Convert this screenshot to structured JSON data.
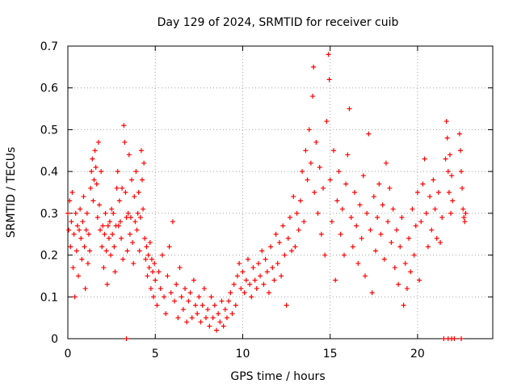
{
  "chart_data": {
    "type": "scatter",
    "title": "Day 129 of 2024, SRMTID for receiver cuib",
    "xlabel": "GPS time / hours",
    "ylabel": "SRMTID / TECUs",
    "xlim": [
      0,
      24.3
    ],
    "ylim": [
      0,
      0.7
    ],
    "x_ticks": [
      0,
      5,
      10,
      15,
      20
    ],
    "x_tick_labels": [
      "0",
      "5",
      "10",
      "15",
      "20"
    ],
    "y_ticks": [
      0,
      0.1,
      0.2,
      0.3,
      0.4,
      0.5,
      0.6,
      0.7
    ],
    "y_tick_labels": [
      "0",
      "0.1",
      "0.2",
      "0.3",
      "0.4",
      "0.5",
      "0.6",
      "0.7"
    ],
    "grid": true,
    "marker": "+",
    "series_color": "#ff0000",
    "series": [
      {
        "name": "SRMTID",
        "points": [
          [
            0.0,
            0.3
          ],
          [
            0.05,
            0.26
          ],
          [
            0.1,
            0.33
          ],
          [
            0.15,
            0.22
          ],
          [
            0.2,
            0.28
          ],
          [
            0.25,
            0.35
          ],
          [
            0.3,
            0.17
          ],
          [
            0.35,
            0.25
          ],
          [
            0.4,
            0.1
          ],
          [
            0.45,
            0.3
          ],
          [
            0.5,
            0.21
          ],
          [
            0.55,
            0.27
          ],
          [
            0.6,
            0.15
          ],
          [
            0.65,
            0.26
          ],
          [
            0.7,
            0.31
          ],
          [
            0.75,
            0.24
          ],
          [
            0.8,
            0.19
          ],
          [
            0.85,
            0.28
          ],
          [
            0.9,
            0.34
          ],
          [
            0.95,
            0.22
          ],
          [
            1.0,
            0.12
          ],
          [
            1.05,
            0.26
          ],
          [
            1.1,
            0.3
          ],
          [
            1.15,
            0.18
          ],
          [
            1.2,
            0.25
          ],
          [
            1.25,
            0.21
          ],
          [
            1.3,
            0.36
          ],
          [
            1.35,
            0.4
          ],
          [
            1.4,
            0.43
          ],
          [
            1.45,
            0.33
          ],
          [
            1.5,
            0.38
          ],
          [
            1.55,
            0.45
          ],
          [
            1.6,
            0.41
          ],
          [
            1.65,
            0.37
          ],
          [
            1.7,
            0.29
          ],
          [
            1.75,
            0.47
          ],
          [
            1.8,
            0.32
          ],
          [
            1.85,
            0.26
          ],
          [
            1.9,
            0.4
          ],
          [
            1.95,
            0.22
          ],
          [
            2.0,
            0.27
          ],
          [
            2.05,
            0.17
          ],
          [
            2.1,
            0.25
          ],
          [
            2.15,
            0.3
          ],
          [
            2.2,
            0.21
          ],
          [
            2.25,
            0.13
          ],
          [
            2.3,
            0.27
          ],
          [
            2.35,
            0.24
          ],
          [
            2.4,
            0.28
          ],
          [
            2.45,
            0.2
          ],
          [
            2.5,
            0.31
          ],
          [
            2.55,
            0.25
          ],
          [
            2.6,
            0.3
          ],
          [
            2.65,
            0.22
          ],
          [
            2.7,
            0.16
          ],
          [
            2.75,
            0.27
          ],
          [
            2.8,
            0.36
          ],
          [
            2.85,
            0.4
          ],
          [
            2.9,
            0.27
          ],
          [
            2.95,
            0.33
          ],
          [
            3.0,
            0.28
          ],
          [
            3.05,
            0.24
          ],
          [
            3.1,
            0.36
          ],
          [
            3.15,
            0.19
          ],
          [
            3.2,
            0.51
          ],
          [
            3.25,
            0.47
          ],
          [
            3.3,
            0.35
          ],
          [
            3.35,
            0.29
          ],
          [
            3.4,
            0.21
          ],
          [
            3.45,
            0.3
          ],
          [
            3.5,
            0.44
          ],
          [
            3.55,
            0.25
          ],
          [
            3.6,
            0.29
          ],
          [
            3.65,
            0.38
          ],
          [
            3.7,
            0.23
          ],
          [
            3.75,
            0.18
          ],
          [
            3.8,
            0.34
          ],
          [
            3.85,
            0.28
          ],
          [
            3.9,
            0.4
          ],
          [
            3.95,
            0.26
          ],
          [
            4.0,
            0.3
          ],
          [
            4.05,
            0.35
          ],
          [
            4.1,
            0.21
          ],
          [
            4.15,
            0.29
          ],
          [
            4.2,
            0.45
          ],
          [
            4.25,
            0.38
          ],
          [
            4.3,
            0.31
          ],
          [
            4.35,
            0.42
          ],
          [
            4.4,
            0.24
          ],
          [
            4.45,
            0.19
          ],
          [
            4.5,
            0.22
          ],
          [
            4.55,
            0.15
          ],
          [
            4.6,
            0.2
          ],
          [
            4.65,
            0.17
          ],
          [
            4.7,
            0.23
          ],
          [
            4.75,
            0.12
          ],
          [
            4.8,
            0.19
          ],
          [
            4.85,
            0.16
          ],
          [
            4.9,
            0.1
          ],
          [
            4.95,
            0.18
          ],
          [
            5.0,
            0.14
          ],
          [
            5.1,
            0.08
          ],
          [
            5.2,
            0.16
          ],
          [
            5.3,
            0.12
          ],
          [
            5.4,
            0.2
          ],
          [
            5.5,
            0.1
          ],
          [
            5.6,
            0.06
          ],
          [
            5.7,
            0.15
          ],
          [
            5.8,
            0.22
          ],
          [
            5.9,
            0.11
          ],
          [
            6.0,
            0.28
          ],
          [
            6.1,
            0.09
          ],
          [
            6.2,
            0.13
          ],
          [
            6.3,
            0.05
          ],
          [
            6.4,
            0.17
          ],
          [
            6.5,
            0.1
          ],
          [
            6.6,
            0.07
          ],
          [
            6.7,
            0.12
          ],
          [
            6.8,
            0.04
          ],
          [
            6.9,
            0.09
          ],
          [
            7.0,
            0.11
          ],
          [
            7.1,
            0.05
          ],
          [
            7.2,
            0.14
          ],
          [
            7.3,
            0.08
          ],
          [
            7.4,
            0.06
          ],
          [
            7.5,
            0.1
          ],
          [
            7.6,
            0.04
          ],
          [
            7.7,
            0.08
          ],
          [
            7.8,
            0.12
          ],
          [
            7.9,
            0.05
          ],
          [
            8.0,
            0.07
          ],
          [
            8.1,
            0.03
          ],
          [
            8.2,
            0.1
          ],
          [
            8.3,
            0.05
          ],
          [
            8.4,
            0.08
          ],
          [
            8.5,
            0.02
          ],
          [
            8.6,
            0.06
          ],
          [
            8.7,
            0.04
          ],
          [
            8.8,
            0.09
          ],
          [
            8.9,
            0.03
          ],
          [
            9.0,
            0.07
          ],
          [
            9.1,
            0.05
          ],
          [
            9.2,
            0.09
          ],
          [
            9.3,
            0.11
          ],
          [
            9.4,
            0.06
          ],
          [
            9.5,
            0.13
          ],
          [
            9.6,
            0.08
          ],
          [
            9.7,
            0.15
          ],
          [
            9.8,
            0.18
          ],
          [
            9.9,
            0.12
          ],
          [
            10.0,
            0.16
          ],
          [
            10.1,
            0.11
          ],
          [
            10.2,
            0.14
          ],
          [
            10.3,
            0.19
          ],
          [
            10.4,
            0.13
          ],
          [
            10.5,
            0.1
          ],
          [
            10.6,
            0.17
          ],
          [
            10.7,
            0.14
          ],
          [
            10.8,
            0.12
          ],
          [
            10.9,
            0.18
          ],
          [
            11.0,
            0.15
          ],
          [
            11.1,
            0.21
          ],
          [
            11.2,
            0.13
          ],
          [
            11.3,
            0.19
          ],
          [
            11.4,
            0.16
          ],
          [
            11.5,
            0.11
          ],
          [
            11.6,
            0.22
          ],
          [
            11.7,
            0.17
          ],
          [
            11.8,
            0.14
          ],
          [
            11.9,
            0.25
          ],
          [
            12.0,
            0.18
          ],
          [
            12.1,
            0.23
          ],
          [
            12.2,
            0.15
          ],
          [
            12.3,
            0.27
          ],
          [
            12.4,
            0.2
          ],
          [
            12.5,
            0.08
          ],
          [
            12.6,
            0.24
          ],
          [
            12.7,
            0.29
          ],
          [
            12.8,
            0.21
          ],
          [
            12.9,
            0.34
          ],
          [
            13.0,
            0.22
          ],
          [
            13.1,
            0.3
          ],
          [
            13.2,
            0.26
          ],
          [
            13.3,
            0.33
          ],
          [
            13.4,
            0.4
          ],
          [
            13.5,
            0.28
          ],
          [
            13.6,
            0.45
          ],
          [
            13.7,
            0.38
          ],
          [
            13.8,
            0.5
          ],
          [
            13.9,
            0.42
          ],
          [
            14.0,
            0.58
          ],
          [
            14.05,
            0.65
          ],
          [
            14.1,
            0.35
          ],
          [
            14.2,
            0.47
          ],
          [
            14.3,
            0.3
          ],
          [
            14.4,
            0.41
          ],
          [
            14.5,
            0.25
          ],
          [
            14.6,
            0.36
          ],
          [
            14.7,
            0.2
          ],
          [
            14.8,
            0.52
          ],
          [
            14.9,
            0.68
          ],
          [
            14.95,
            0.62
          ],
          [
            15.0,
            0.38
          ],
          [
            15.1,
            0.28
          ],
          [
            15.2,
            0.45
          ],
          [
            15.3,
            0.14
          ],
          [
            15.4,
            0.33
          ],
          [
            15.5,
            0.4
          ],
          [
            15.6,
            0.25
          ],
          [
            15.7,
            0.31
          ],
          [
            15.8,
            0.2
          ],
          [
            15.9,
            0.37
          ],
          [
            16.0,
            0.44
          ],
          [
            16.1,
            0.55
          ],
          [
            16.2,
            0.29
          ],
          [
            16.3,
            0.22
          ],
          [
            16.4,
            0.35
          ],
          [
            16.5,
            0.27
          ],
          [
            16.6,
            0.18
          ],
          [
            16.7,
            0.32
          ],
          [
            16.8,
            0.24
          ],
          [
            16.9,
            0.39
          ],
          [
            17.0,
            0.15
          ],
          [
            17.1,
            0.3
          ],
          [
            17.2,
            0.49
          ],
          [
            17.3,
            0.26
          ],
          [
            17.4,
            0.11
          ],
          [
            17.5,
            0.34
          ],
          [
            17.6,
            0.21
          ],
          [
            17.7,
            0.29
          ],
          [
            17.8,
            0.37
          ],
          [
            17.9,
            0.25
          ],
          [
            18.0,
            0.32
          ],
          [
            18.1,
            0.19
          ],
          [
            18.2,
            0.42
          ],
          [
            18.3,
            0.28
          ],
          [
            18.4,
            0.36
          ],
          [
            18.5,
            0.23
          ],
          [
            18.6,
            0.31
          ],
          [
            18.7,
            0.17
          ],
          [
            18.8,
            0.26
          ],
          [
            18.9,
            0.13
          ],
          [
            19.0,
            0.22
          ],
          [
            19.1,
            0.29
          ],
          [
            19.2,
            0.08
          ],
          [
            19.3,
            0.18
          ],
          [
            19.4,
            0.12
          ],
          [
            19.5,
            0.24
          ],
          [
            19.6,
            0.16
          ],
          [
            19.7,
            0.31
          ],
          [
            19.8,
            0.2
          ],
          [
            19.9,
            0.27
          ],
          [
            20.0,
            0.35
          ],
          [
            20.1,
            0.14
          ],
          [
            20.2,
            0.28
          ],
          [
            20.3,
            0.37
          ],
          [
            20.4,
            0.43
          ],
          [
            20.5,
            0.3
          ],
          [
            20.6,
            0.22
          ],
          [
            20.7,
            0.34
          ],
          [
            20.8,
            0.26
          ],
          [
            20.9,
            0.38
          ],
          [
            21.0,
            0.31
          ],
          [
            21.1,
            0.24
          ],
          [
            21.2,
            0.35
          ],
          [
            21.3,
            0.23
          ],
          [
            21.4,
            0.29
          ],
          [
            21.6,
            0.43
          ],
          [
            21.65,
            0.52
          ],
          [
            21.7,
            0.48
          ],
          [
            21.75,
            0.4
          ],
          [
            21.8,
            0.35
          ],
          [
            21.85,
            0.44
          ],
          [
            21.9,
            0.3
          ],
          [
            21.95,
            0.39
          ],
          [
            22.0,
            0.33
          ],
          [
            22.4,
            0.49
          ],
          [
            22.45,
            0.45
          ],
          [
            22.5,
            0.4
          ],
          [
            22.55,
            0.36
          ],
          [
            22.6,
            0.31
          ],
          [
            22.65,
            0.29
          ],
          [
            22.7,
            0.28
          ],
          [
            22.75,
            0.3
          ],
          [
            3.35,
            0.0
          ],
          [
            21.5,
            0.0
          ],
          [
            21.75,
            0.0
          ],
          [
            21.95,
            0.0
          ],
          [
            22.1,
            0.0
          ],
          [
            22.5,
            0.0
          ]
        ]
      }
    ]
  }
}
